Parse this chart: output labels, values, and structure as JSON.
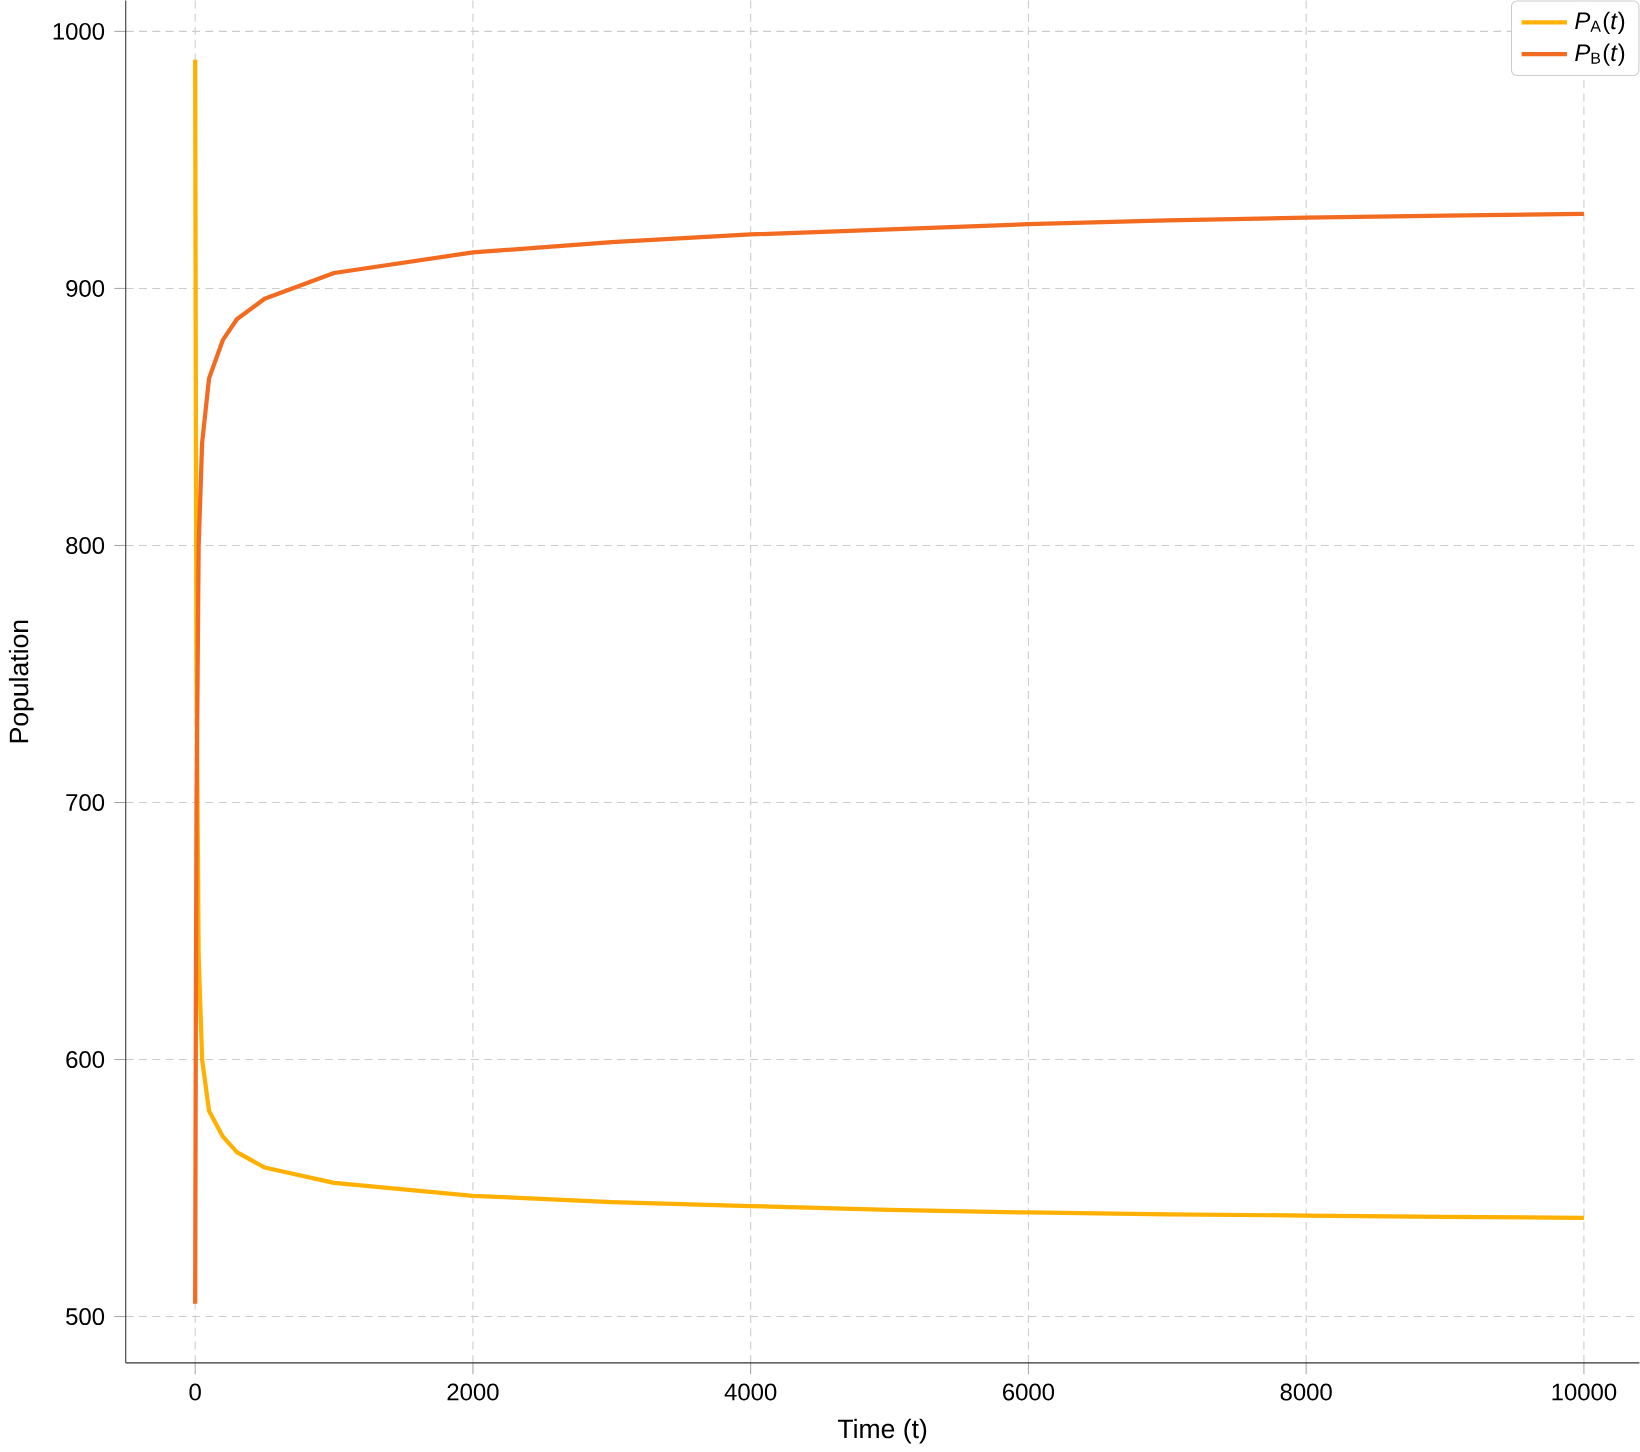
{
  "chart_data": {
    "type": "line",
    "xlabel": "Time (t)",
    "ylabel": "Population",
    "xlim": [
      -500,
      10400
    ],
    "ylim": [
      482,
      1012
    ],
    "xticks": [
      0,
      2000,
      4000,
      6000,
      8000,
      10000
    ],
    "yticks": [
      500,
      600,
      700,
      800,
      900,
      1000
    ],
    "grid": true,
    "legend": "top right",
    "line_style": "solid",
    "series": [
      {
        "name": "*P*$_{A}$(*t*)",
        "color": "#ffb000",
        "x": [
          0,
          5,
          10,
          25,
          50,
          100,
          200,
          300,
          500,
          1000,
          2000,
          3000,
          4000,
          5000,
          6000,
          7000,
          8000,
          9000,
          10000
        ],
        "values": [
          989,
          850,
          750,
          640,
          600,
          580,
          570,
          564,
          558,
          552,
          547,
          544.5,
          543,
          541.5,
          540.5,
          539.8,
          539.3,
          538.8,
          538.4
        ]
      },
      {
        "name": "*P*$_{B}$(*t*)",
        "color": "#f26b21",
        "x": [
          0,
          5,
          10,
          25,
          50,
          100,
          200,
          300,
          500,
          1000,
          2000,
          3000,
          4000,
          5000,
          6000,
          7000,
          8000,
          9000,
          10000
        ],
        "values": [
          505,
          620,
          700,
          800,
          840,
          865,
          880,
          888,
          896,
          906,
          914,
          918,
          921,
          923,
          925,
          926.5,
          927.5,
          928.3,
          929
        ]
      }
    ]
  }
}
